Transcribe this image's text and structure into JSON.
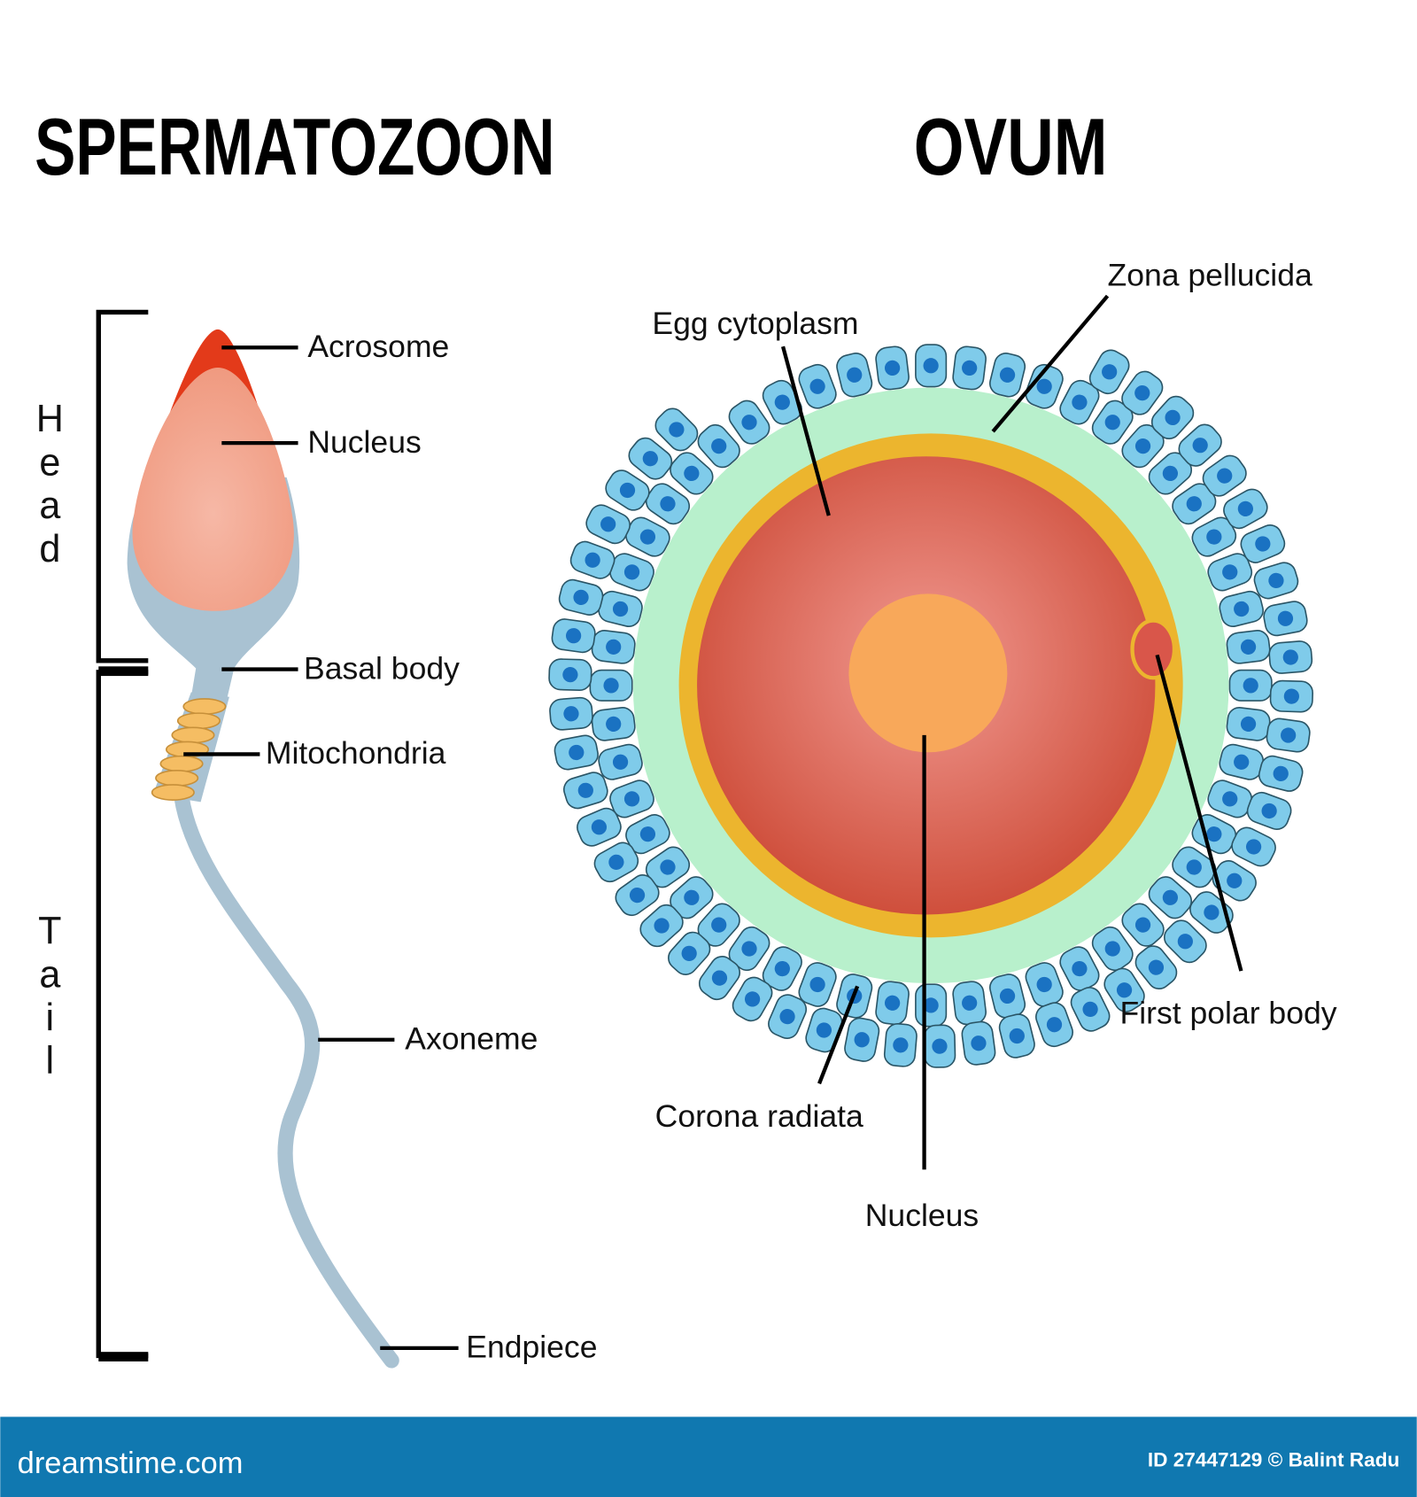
{
  "titles": {
    "left": "SPERMATOZOON",
    "right": "OVUM"
  },
  "sperm": {
    "sections": {
      "head": [
        "H",
        "e",
        "a",
        "d"
      ],
      "tail": [
        "T",
        "a",
        "i",
        "l"
      ]
    },
    "labels": {
      "acrosome": "Acrosome",
      "nucleus": "Nucleus",
      "basal_body": "Basal body",
      "mitochondria": "Mitochondria",
      "axoneme": "Axoneme",
      "endpiece": "Endpiece"
    }
  },
  "ovum": {
    "labels": {
      "zona_pellucida": "Zona pellucida",
      "egg_cytoplasm": "Egg cytoplasm",
      "first_polar_body": "First polar body",
      "corona_radiata": "Corona radiata",
      "nucleus": "Nucleus"
    }
  },
  "footer": {
    "brand": "dreamstime.com",
    "credit": "ID 27447129 © Balint Radu"
  },
  "colors": {
    "footer_bar": "#1078b0",
    "acrosome": "#e33a1a",
    "nucleus": "#f3a896",
    "sperm_body": "#a9c2d2",
    "mitochondria": "#f5bd63",
    "zona": "#b8f0cc",
    "yolk_ring": "#ecb52e",
    "cytoplasm": "#d9564a",
    "ovum_nucleus": "#f8a85a",
    "corona_cell": "#7fcbea",
    "cell_nucleus": "#1a72c2"
  }
}
